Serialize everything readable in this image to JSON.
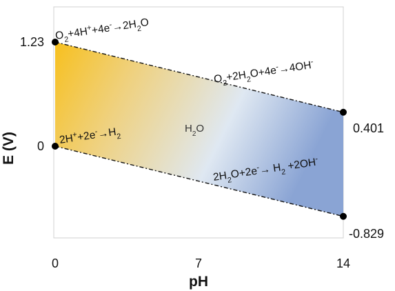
{
  "chart_data": {
    "type": "area",
    "title": "",
    "xlabel": "pH",
    "ylabel": "E (V)",
    "x_ticks": [
      "0",
      "7",
      "14"
    ],
    "y_ticks_left": [
      "1.23",
      "0"
    ],
    "xlim": [
      0,
      14
    ],
    "ylim": [
      -1.3,
      1.6
    ],
    "grid": false,
    "series": [
      {
        "name": "",
        "x": [
          0,
          14
        ],
        "y": [
          1.23,
          0.401
        ]
      },
      {
        "name": "",
        "x": [
          0,
          14
        ],
        "y": [
          0,
          -0.829
        ]
      }
    ],
    "endpoint_labels": [
      "1.23",
      "0",
      "0.401",
      "-0.829"
    ],
    "annotations": {
      "upper_left": [
        "O",
        "2",
        "+4H",
        "+",
        "+4e",
        "-",
        "→2H",
        "2",
        "O"
      ],
      "upper_right": [
        "O",
        "2",
        "+2H",
        "2",
        "O+4e",
        "-",
        "→4OH",
        "-"
      ],
      "lower_left": [
        "2H",
        "+",
        "+2e",
        "-",
        "→H",
        "2"
      ],
      "lower_right": [
        "2H",
        "2",
        "O+2e",
        "-",
        "→ H",
        "2",
        " +2OH",
        "-"
      ],
      "region": [
        "H",
        "2",
        "O"
      ]
    },
    "colors": {
      "gradient_start": "#f7c01e",
      "gradient_mid": "#dfe8f2",
      "gradient_end": "#8aa4d4",
      "line": "#111111",
      "frame": "#d0d0d0"
    }
  }
}
